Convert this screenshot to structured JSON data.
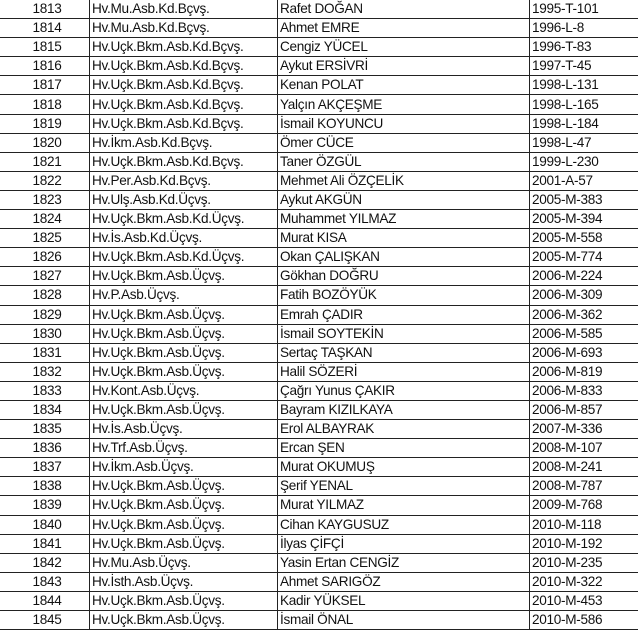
{
  "rows": [
    {
      "no": "1813",
      "rank": "Hv.Mu.Asb.Kd.Bçvş.",
      "name": "Rafet DOĞAN",
      "sicil": "1995-T-101"
    },
    {
      "no": "1814",
      "rank": "Hv.Mu.Asb.Kd.Bçvş.",
      "name": "Ahmet EMRE",
      "sicil": "1996-L-8"
    },
    {
      "no": "1815",
      "rank": "Hv.Uçk.Bkm.Asb.Kd.Bçvş.",
      "name": "Cengiz YÜCEL",
      "sicil": "1996-T-83"
    },
    {
      "no": "1816",
      "rank": "Hv.Uçk.Bkm.Asb.Kd.Bçvş.",
      "name": "Aykut ERSİVRİ",
      "sicil": "1997-T-45"
    },
    {
      "no": "1817",
      "rank": "Hv.Uçk.Bkm.Asb.Kd.Bçvş.",
      "name": "Kenan POLAT",
      "sicil": "1998-L-131"
    },
    {
      "no": "1818",
      "rank": "Hv.Uçk.Bkm.Asb.Kd.Bçvş.",
      "name": "Yalçın AKÇEŞME",
      "sicil": "1998-L-165"
    },
    {
      "no": "1819",
      "rank": "Hv.Uçk.Bkm.Asb.Kd.Bçvş.",
      "name": "İsmail KOYUNCU",
      "sicil": "1998-L-184"
    },
    {
      "no": "1820",
      "rank": "Hv.İkm.Asb.Kd.Bçvş.",
      "name": "Ömer CÜCE",
      "sicil": "1998-L-47"
    },
    {
      "no": "1821",
      "rank": "Hv.Uçk.Bkm.Asb.Kd.Bçvş.",
      "name": "Taner ÖZGÜL",
      "sicil": "1999-L-230"
    },
    {
      "no": "1822",
      "rank": "Hv.Per.Asb.Kd.Bçvş.",
      "name": "Mehmet Ali ÖZÇELİK",
      "sicil": "2001-A-57"
    },
    {
      "no": "1823",
      "rank": "Hv.Ulş.Asb.Kd.Üçvş.",
      "name": "Aykut AKGÜN",
      "sicil": "2005-M-383"
    },
    {
      "no": "1824",
      "rank": "Hv.Uçk.Bkm.Asb.Kd.Üçvş.",
      "name": "Muhammet YILMAZ",
      "sicil": "2005-M-394"
    },
    {
      "no": "1825",
      "rank": "Hv.İs.Asb.Kd.Üçvş.",
      "name": "Murat KISA",
      "sicil": "2005-M-558"
    },
    {
      "no": "1826",
      "rank": "Hv.Uçk.Bkm.Asb.Kd.Üçvş.",
      "name": "Okan ÇALIŞKAN",
      "sicil": "2005-M-774"
    },
    {
      "no": "1827",
      "rank": "Hv.Uçk.Bkm.Asb.Üçvş.",
      "name": "Gökhan DOĞRU",
      "sicil": "2006-M-224"
    },
    {
      "no": "1828",
      "rank": "Hv.P.Asb.Üçvş.",
      "name": "Fatih BOZÖYÜK",
      "sicil": "2006-M-309"
    },
    {
      "no": "1829",
      "rank": "Hv.Uçk.Bkm.Asb.Üçvş.",
      "name": "Emrah ÇADIR",
      "sicil": "2006-M-362"
    },
    {
      "no": "1830",
      "rank": "Hv.Uçk.Bkm.Asb.Üçvş.",
      "name": "İsmail SOYTEKİN",
      "sicil": "2006-M-585"
    },
    {
      "no": "1831",
      "rank": "Hv.Uçk.Bkm.Asb.Üçvş.",
      "name": "Sertaç TAŞKAN",
      "sicil": "2006-M-693"
    },
    {
      "no": "1832",
      "rank": "Hv.Uçk.Bkm.Asb.Üçvş.",
      "name": "Halil SÖZERİ",
      "sicil": "2006-M-819"
    },
    {
      "no": "1833",
      "rank": "Hv.Kont.Asb.Üçvş.",
      "name": "Çağrı Yunus ÇAKIR",
      "sicil": "2006-M-833"
    },
    {
      "no": "1834",
      "rank": "Hv.Uçk.Bkm.Asb.Üçvş.",
      "name": "Bayram KIZILKAYA",
      "sicil": "2006-M-857"
    },
    {
      "no": "1835",
      "rank": "Hv.İs.Asb.Üçvş.",
      "name": "Erol ALBAYRAK",
      "sicil": "2007-M-336"
    },
    {
      "no": "1836",
      "rank": "Hv.Trf.Asb.Üçvş.",
      "name": "Ercan ŞEN",
      "sicil": "2008-M-107"
    },
    {
      "no": "1837",
      "rank": "Hv.İkm.Asb.Üçvş.",
      "name": "Murat OKUMUŞ",
      "sicil": "2008-M-241"
    },
    {
      "no": "1838",
      "rank": "Hv.Uçk.Bkm.Asb.Üçvş.",
      "name": "Şerif YENAL",
      "sicil": "2008-M-787"
    },
    {
      "no": "1839",
      "rank": "Hv.Uçk.Bkm.Asb.Üçvş.",
      "name": "Murat YILMAZ",
      "sicil": "2009-M-768"
    },
    {
      "no": "1840",
      "rank": "Hv.Uçk.Bkm.Asb.Üçvş.",
      "name": "Cihan KAYGUSUZ",
      "sicil": "2010-M-118"
    },
    {
      "no": "1841",
      "rank": "Hv.Uçk.Bkm.Asb.Üçvş.",
      "name": "İlyas ÇİFÇİ",
      "sicil": "2010-M-192"
    },
    {
      "no": "1842",
      "rank": "Hv.Mu.Asb.Üçvş.",
      "name": "Yasin Ertan CENGİZ",
      "sicil": "2010-M-235"
    },
    {
      "no": "1843",
      "rank": "Hv.İsth.Asb.Üçvş.",
      "name": "Ahmet SARIGÖZ",
      "sicil": "2010-M-322"
    },
    {
      "no": "1844",
      "rank": "Hv.Uçk.Bkm.Asb.Üçvş.",
      "name": "Kadir YÜKSEL",
      "sicil": "2010-M-453"
    },
    {
      "no": "1845",
      "rank": "Hv.Uçk.Bkm.Asb.Üçvş.",
      "name": "İsmail ÖNAL",
      "sicil": "2010-M-586"
    }
  ]
}
